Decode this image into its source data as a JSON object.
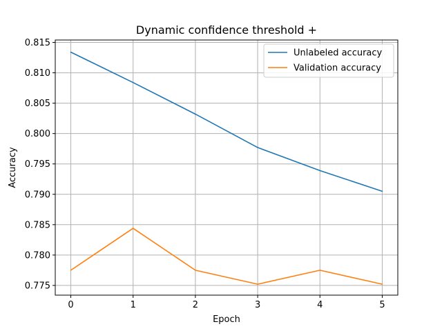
{
  "chart_data": {
    "type": "line",
    "title": "Dynamic confidence threshold +",
    "xlabel": "Epoch",
    "ylabel": "Accuracy",
    "x": [
      0,
      1,
      2,
      3,
      4,
      5
    ],
    "xticks": [
      "0",
      "1",
      "2",
      "3",
      "4",
      "5"
    ],
    "yticks": [
      "0.775",
      "0.780",
      "0.785",
      "0.790",
      "0.795",
      "0.800",
      "0.805",
      "0.810",
      "0.815"
    ],
    "xlim": [
      -0.25,
      5.25
    ],
    "ylim": [
      0.7734,
      0.8154
    ],
    "grid": true,
    "legend_position": "top-right",
    "series": [
      {
        "name": "Unlabeled accuracy",
        "color": "#1f77b4",
        "values": [
          0.8134,
          0.8084,
          0.8032,
          0.7977,
          0.7939,
          0.7905
        ]
      },
      {
        "name": "Validation accuracy",
        "color": "#ff7f0e",
        "values": [
          0.7775,
          0.7844,
          0.7775,
          0.7752,
          0.7775,
          0.7752
        ]
      }
    ]
  }
}
